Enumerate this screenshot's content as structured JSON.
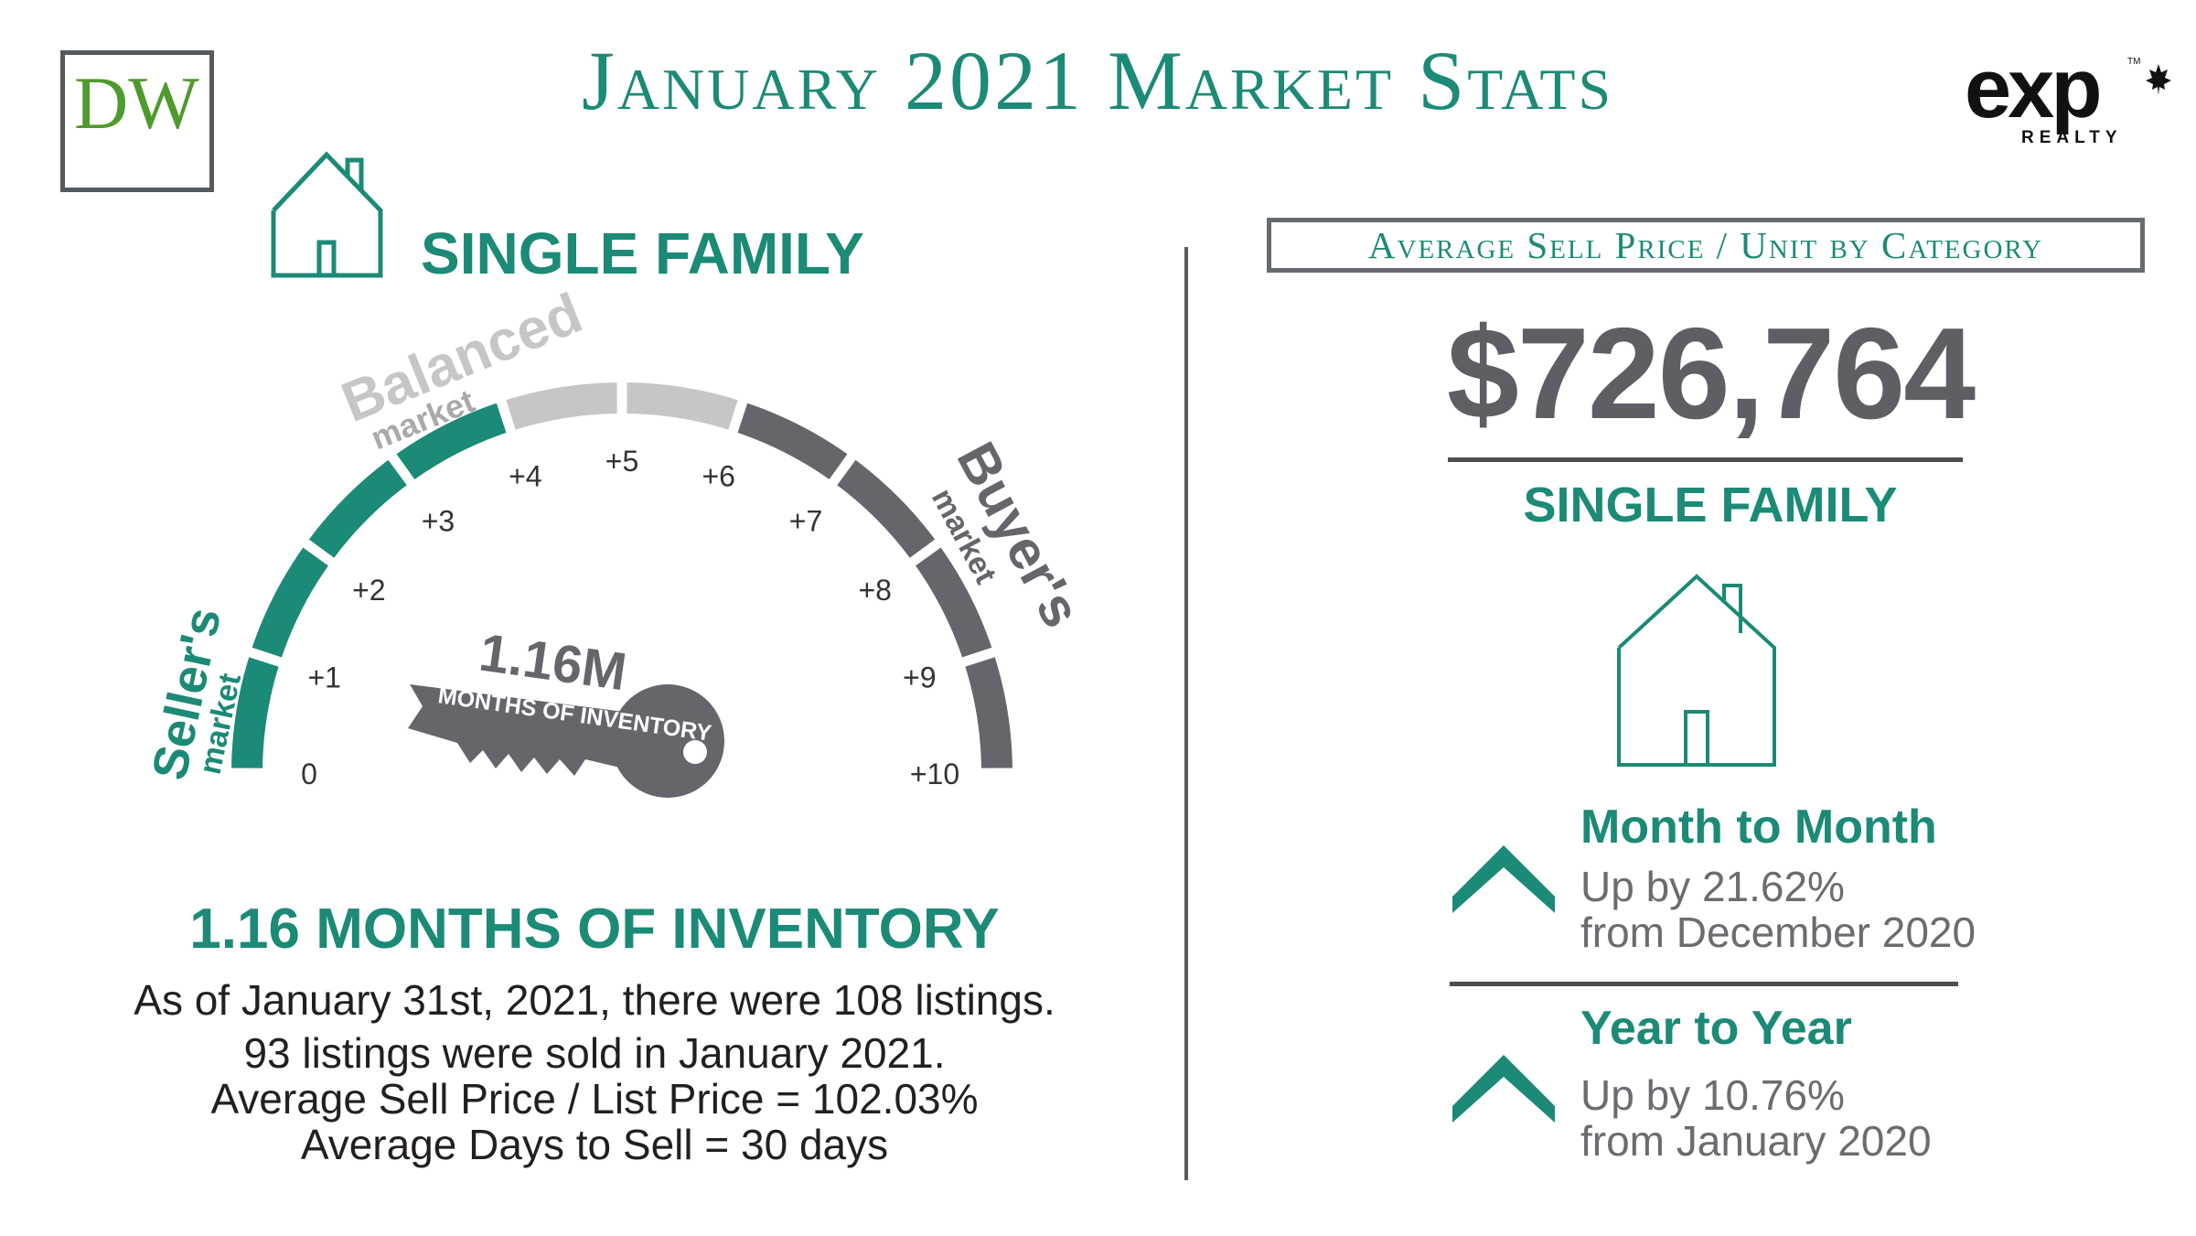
{
  "header": {
    "title": "January 2021 Market Stats",
    "left_logo_text": "DW",
    "right_logo_text": "exp",
    "right_logo_subtext": "REALTY",
    "right_logo_trademark": "TM"
  },
  "left_panel": {
    "heading": "SINGLE FAMILY",
    "gauge": {
      "zone_labels": {
        "sellers_main": "Seller's",
        "sellers_sub": "market",
        "balanced_main": "Balanced",
        "balanced_sub": "market",
        "buyers_main": "Buyer's",
        "buyers_sub": "market"
      },
      "ticks": [
        "0",
        "+1",
        "+2",
        "+3",
        "+4",
        "+5",
        "+6",
        "+7",
        "+8",
        "+9",
        "+10"
      ],
      "value": 1.16,
      "key_value": "1.16M",
      "key_caption": "MONTHS OF INVENTORY",
      "colors": {
        "sellers": "#1b8a76",
        "balanced": "#c6c6c6",
        "buyers": "#65666b"
      }
    },
    "inventory_heading": "1.16 MONTHS OF INVENTORY",
    "inventory_lines": [
      "As of January 31st, 2021, there were 108 listings.",
      "93 listings were sold in January 2021.",
      "Average Sell Price / List Price = 102.03%",
      "Average Days to Sell = 30 days"
    ]
  },
  "right_panel": {
    "category_box": "Average Sell Price / Unit by Category",
    "price": "$726,764",
    "category": "SINGLE FAMILY",
    "month_to_month": {
      "title": "Month to Month",
      "line1": "Up by 21.62%",
      "line2": "from December 2020"
    },
    "year_to_year": {
      "title": "Year to Year",
      "line1": "Up by 10.76%",
      "line2": "from January 2020"
    }
  },
  "colors": {
    "accent": "#1b8a76",
    "grey": "#616268"
  }
}
